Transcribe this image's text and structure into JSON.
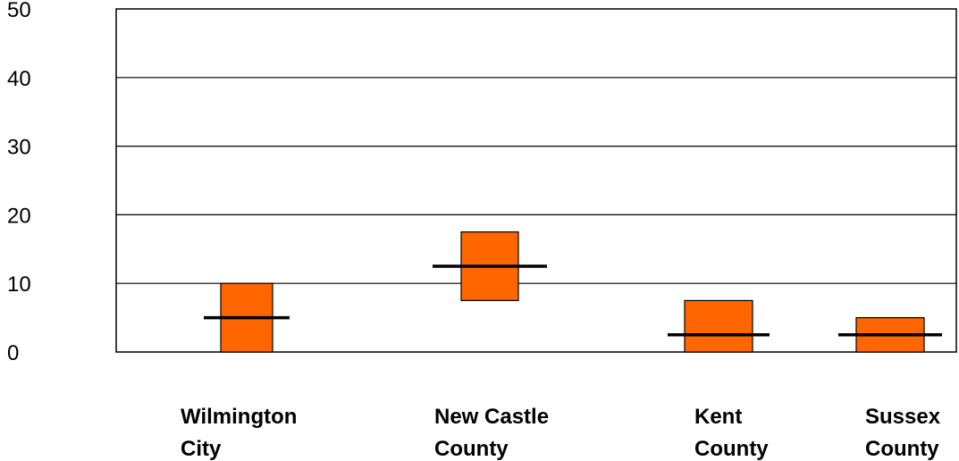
{
  "chart_data": {
    "type": "bar",
    "categories": [
      [
        "Wilmington",
        "City"
      ],
      [
        "New Castle",
        "County"
      ],
      [
        "Kent",
        "County"
      ],
      [
        "Sussex",
        "County"
      ]
    ],
    "y_ticks": [
      "0",
      "10",
      "20",
      "30",
      "40",
      "50"
    ],
    "ylim": [
      0,
      50
    ],
    "grid": true,
    "legend": "none",
    "series": [
      {
        "bar_bottom": [
          0,
          7.5,
          0,
          0
        ],
        "bar_top": [
          10,
          17.5,
          7.5,
          5
        ]
      },
      {
        "marker": [
          5,
          12.5,
          2.5,
          2.5
        ]
      }
    ],
    "colors": {
      "bar_fill": "#FF6600",
      "bar_stroke": "#000000",
      "marker": "#000000",
      "grid": "#000000"
    }
  }
}
